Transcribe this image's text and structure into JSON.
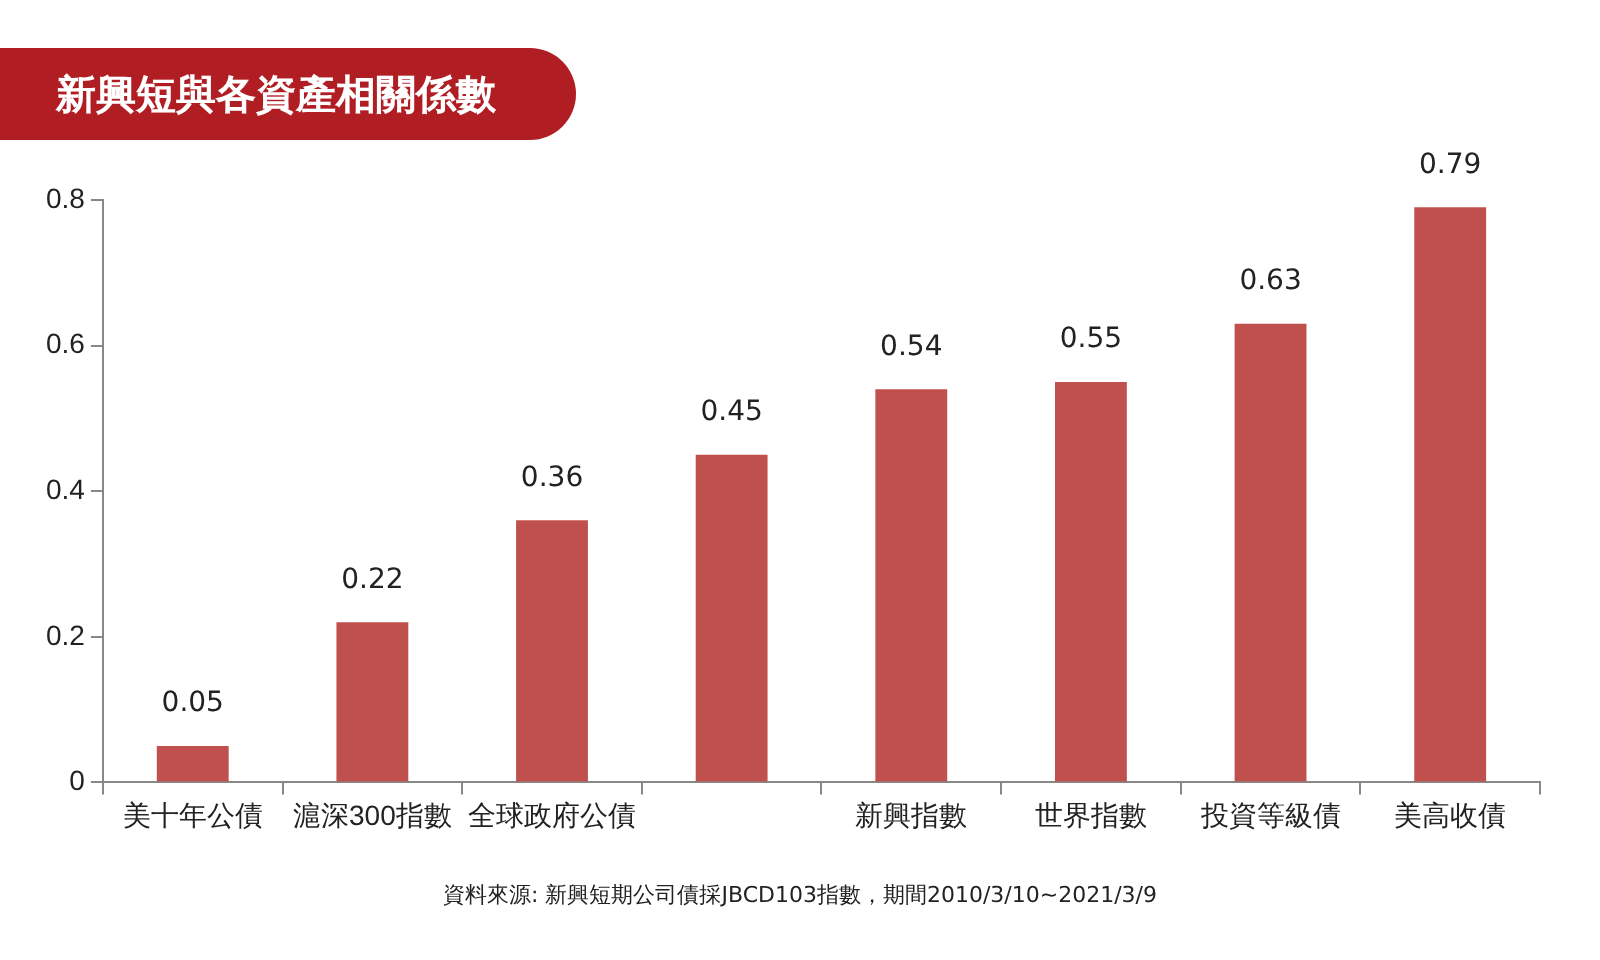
{
  "chart_data": {
    "type": "bar",
    "title": "新興短與各資產相關係數",
    "categories": [
      "美十年公債",
      "滬深300指數",
      "全球政府公債",
      null,
      "新興指數",
      "世界指數",
      "投資等級債",
      "美高收債"
    ],
    "values": [
      0.05,
      0.22,
      0.36,
      0.45,
      0.54,
      0.55,
      0.63,
      0.79
    ],
    "color": "#c0504d",
    "ylim": [
      0,
      0.8
    ],
    "yticks": [
      0,
      0.2,
      0.4,
      0.6,
      0.8
    ],
    "data_labels": true,
    "legend": false,
    "annotations": [
      "資料來源: 新興短期公司債採JBCD103指數，期間2010/3/10~2021/3/9"
    ]
  }
}
